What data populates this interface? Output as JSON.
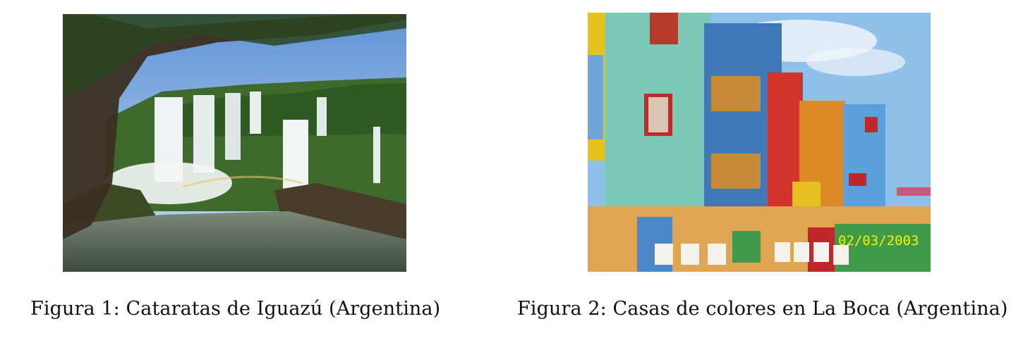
{
  "figures": [
    {
      "caption": "Figura 1: Cataratas de Iguazú (Argentina)",
      "image_subject": "waterfalls-with-tree-and-river"
    },
    {
      "caption": "Figura 2: Casas de colores en La Boca (Argentina)",
      "image_subject": "colorful-houses-street",
      "date_stamp": "02/03/2003",
      "date_stamp_color": "#f2f200"
    }
  ]
}
